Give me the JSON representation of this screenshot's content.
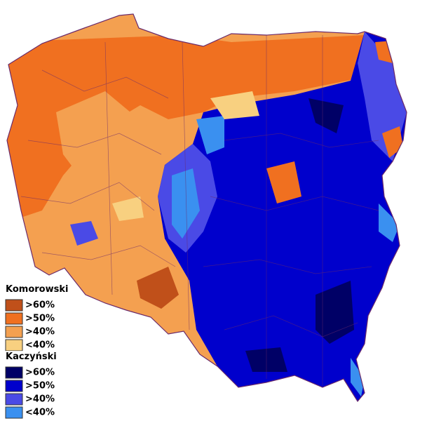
{
  "legend": {
    "groups": [
      {
        "title": "Komorowski",
        "items": [
          {
            "label": ">60%",
            "color": "#c0501a"
          },
          {
            "label": ">50%",
            "color": "#f07020"
          },
          {
            "label": ">40%",
            "color": "#f4a050"
          },
          {
            "label": "<40%",
            "color": "#f8d080"
          }
        ]
      },
      {
        "title": "Kaczyński",
        "items": [
          {
            "label": ">60%",
            "color": "#000066"
          },
          {
            "label": ">50%",
            "color": "#0000cc"
          },
          {
            "label": ">40%",
            "color": "#4a4ae6"
          },
          {
            "label": "<40%",
            "color": "#3a90f0"
          }
        ]
      }
    ]
  }
}
